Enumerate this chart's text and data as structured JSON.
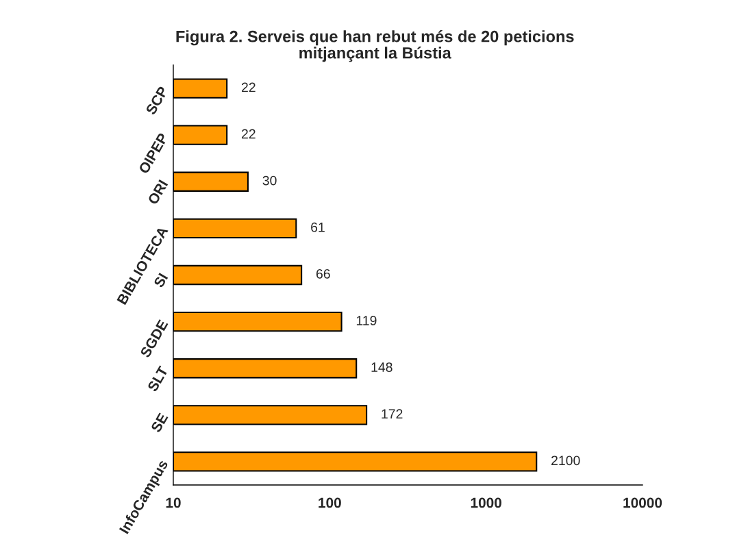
{
  "chart_data": {
    "type": "bar",
    "orientation": "horizontal",
    "title": "Figura 2. Serveis que han rebut més de 20 peticions\nmitjançant la Bústia",
    "categories": [
      "SCP",
      "OIPEP",
      "ORI",
      "BIBLIOTECA",
      "SI",
      "SGDE",
      "SLT",
      "SE",
      "InfoCampus"
    ],
    "values": [
      22,
      22,
      30,
      61,
      66,
      119,
      148,
      172,
      2100
    ],
    "color": "#ff9900",
    "log": "x",
    "xlim": [
      10,
      10000
    ],
    "xticks": [
      10,
      100,
      1000,
      10000
    ],
    "grid": false,
    "legend": false,
    "data_labels": true
  }
}
